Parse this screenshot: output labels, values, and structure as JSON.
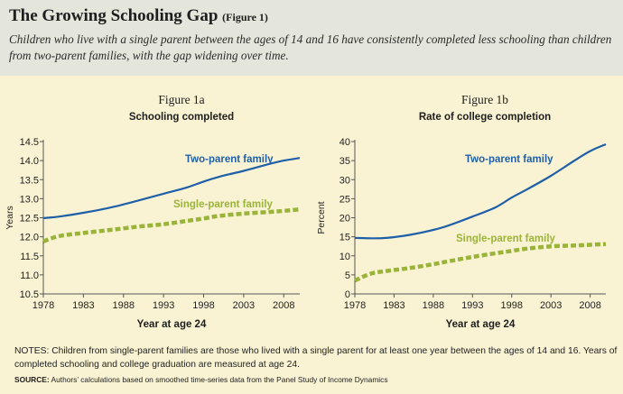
{
  "header": {
    "title": "The Growing Schooling Gap",
    "title_suffix": "(Figure 1)",
    "caption": "Children who live with a single parent between the ages of 14 and 16 have consistently completed less schooling than children from two-parent families, with the gap widening over time."
  },
  "colors": {
    "two_parent": "#1f5fa8",
    "single_parent": "#9ab43a",
    "background": "#faf3d3",
    "header_bg": "#e4e6dc"
  },
  "chart_data": [
    {
      "type": "line",
      "figure_label": "Figure 1a",
      "title": "Schooling completed",
      "xlabel": "Year at age 24",
      "ylabel": "Years",
      "xlim": [
        1978,
        2010
      ],
      "ylim": [
        10.5,
        14.5
      ],
      "xticks": [
        1978,
        1983,
        1988,
        1993,
        1998,
        2003,
        2008
      ],
      "yticks": [
        10.5,
        11.0,
        11.5,
        12.0,
        12.5,
        13.0,
        13.5,
        14.0,
        14.5
      ],
      "ytick_labels": [
        "10.5",
        "11.0",
        "11.5",
        "12.0",
        "12.5",
        "13.0",
        "13.5",
        "14.0",
        "14.5"
      ],
      "series": [
        {
          "name": "Two-parent family",
          "style": "solid",
          "x": [
            1978,
            1980,
            1983,
            1986,
            1988,
            1990,
            1993,
            1996,
            1998,
            2000,
            2003,
            2006,
            2008,
            2010
          ],
          "values": [
            12.49,
            12.53,
            12.63,
            12.75,
            12.85,
            12.96,
            13.13,
            13.3,
            13.45,
            13.58,
            13.73,
            13.9,
            14.0,
            14.07
          ]
        },
        {
          "name": "Single-parent family",
          "style": "dashed",
          "x": [
            1978,
            1980,
            1983,
            1986,
            1988,
            1990,
            1993,
            1996,
            1998,
            2000,
            2003,
            2006,
            2008,
            2010
          ],
          "values": [
            11.88,
            12.02,
            12.1,
            12.17,
            12.22,
            12.27,
            12.33,
            12.42,
            12.48,
            12.55,
            12.61,
            12.65,
            12.68,
            12.72
          ]
        }
      ]
    },
    {
      "type": "line",
      "figure_label": "Figure 1b",
      "title": "Rate of college completion",
      "xlabel": "Year at age 24",
      "ylabel": "Percent",
      "xlim": [
        1978,
        2010
      ],
      "ylim": [
        0,
        40
      ],
      "xticks": [
        1978,
        1983,
        1988,
        1993,
        1998,
        2003,
        2008
      ],
      "yticks": [
        0,
        5,
        10,
        15,
        20,
        25,
        30,
        35,
        40
      ],
      "ytick_labels": [
        "0",
        "5",
        "10",
        "15",
        "20",
        "25",
        "30",
        "35",
        "40"
      ],
      "series": [
        {
          "name": "Two-parent family",
          "style": "solid",
          "x": [
            1978,
            1980,
            1982,
            1985,
            1988,
            1990,
            1993,
            1996,
            1998,
            2000,
            2003,
            2006,
            2008,
            2010
          ],
          "values": [
            14.7,
            14.6,
            14.7,
            15.5,
            16.8,
            18.0,
            20.3,
            22.8,
            25.3,
            27.5,
            31.0,
            35.0,
            37.5,
            39.3
          ]
        },
        {
          "name": "Single-parent family",
          "style": "dashed",
          "x": [
            1978,
            1980,
            1982,
            1985,
            1988,
            1990,
            1993,
            1996,
            1998,
            2000,
            2003,
            2006,
            2008,
            2010
          ],
          "values": [
            3.5,
            5.3,
            6.0,
            6.8,
            7.8,
            8.6,
            9.7,
            10.7,
            11.3,
            11.9,
            12.5,
            12.7,
            12.9,
            13.1
          ]
        }
      ]
    }
  ],
  "notes": "NOTES: Children from single-parent families are those who lived with a single parent for at least one year between the ages of 14 and 16. Years of completed schooling and college graduation are measured at age 24.",
  "source": {
    "label": "SOURCE:",
    "text": "Authors’ calculations based on smoothed time-series data from the Panel Study of Income Dynamics"
  }
}
